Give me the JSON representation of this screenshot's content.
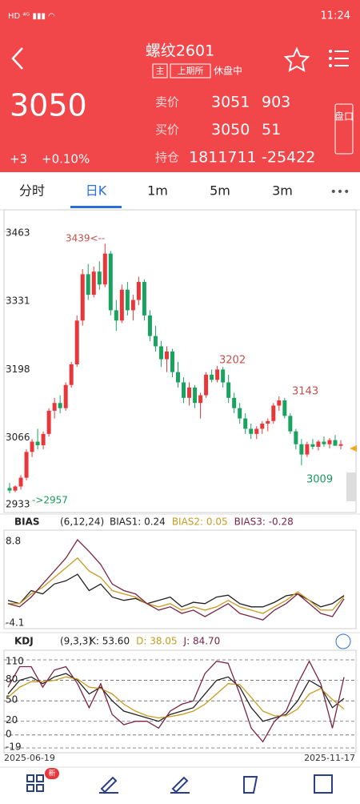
{
  "status_bar": {
    "time": "11:24"
  },
  "header": {
    "title": "螺纹2601",
    "tags": [
      "主",
      "上期所"
    ],
    "status": "休盘中"
  },
  "quote": {
    "price": "3050",
    "change": "+3",
    "change_pct": "+0.10%",
    "rows": [
      [
        "卖价",
        "3051",
        "903"
      ],
      [
        "买价",
        "3050",
        "51"
      ],
      [
        "持仓",
        "1811711",
        "-25422"
      ]
    ],
    "side_button": "盘口"
  },
  "tabs": [
    "分时",
    "日K",
    "1m",
    "5m",
    "3m"
  ],
  "active_tab": 1,
  "chart_data": [
    {
      "type": "candlestick",
      "up_color": "#e8373a",
      "down_color": "#1aa260",
      "ylim": [
        2933,
        3463
      ],
      "yticks": [
        3463,
        3331,
        3198,
        3066,
        2933
      ],
      "annotations": [
        "3439<--",
        "3202",
        "3143",
        "3009",
        "->2957"
      ],
      "x_labels": [
        "2025-06-19",
        "2025-11-17"
      ],
      "ohlc": [
        [
          2965,
          2975,
          2955,
          2960
        ],
        [
          2960,
          2970,
          2957,
          2968
        ],
        [
          2968,
          2990,
          2962,
          2985
        ],
        [
          2985,
          3040,
          2980,
          3035
        ],
        [
          3035,
          3060,
          3025,
          3055
        ],
        [
          3055,
          3080,
          3040,
          3048
        ],
        [
          3048,
          3075,
          3040,
          3070
        ],
        [
          3070,
          3120,
          3065,
          3115
        ],
        [
          3115,
          3140,
          3100,
          3130
        ],
        [
          3130,
          3145,
          3110,
          3120
        ],
        [
          3120,
          3170,
          3115,
          3165
        ],
        [
          3165,
          3210,
          3160,
          3205
        ],
        [
          3205,
          3300,
          3200,
          3290
        ],
        [
          3290,
          3390,
          3280,
          3380
        ],
        [
          3380,
          3400,
          3330,
          3340
        ],
        [
          3340,
          3395,
          3335,
          3385
        ],
        [
          3385,
          3405,
          3350,
          3360
        ],
        [
          3360,
          3439,
          3355,
          3420
        ],
        [
          3420,
          3425,
          3300,
          3310
        ],
        [
          3310,
          3330,
          3270,
          3290
        ],
        [
          3290,
          3360,
          3285,
          3350
        ],
        [
          3350,
          3365,
          3300,
          3310
        ],
        [
          3310,
          3340,
          3290,
          3330
        ],
        [
          3330,
          3375,
          3320,
          3365
        ],
        [
          3365,
          3370,
          3290,
          3300
        ],
        [
          3300,
          3310,
          3250,
          3260
        ],
        [
          3260,
          3280,
          3230,
          3240
        ],
        [
          3240,
          3250,
          3200,
          3215
        ],
        [
          3215,
          3240,
          3190,
          3230
        ],
        [
          3230,
          3235,
          3180,
          3190
        ],
        [
          3190,
          3210,
          3160,
          3170
        ],
        [
          3170,
          3180,
          3130,
          3140
        ],
        [
          3140,
          3170,
          3125,
          3160
        ],
        [
          3160,
          3165,
          3120,
          3130
        ],
        [
          3130,
          3150,
          3100,
          3145
        ],
        [
          3145,
          3190,
          3140,
          3185
        ],
        [
          3185,
          3195,
          3170,
          3175
        ],
        [
          3175,
          3202,
          3170,
          3195
        ],
        [
          3195,
          3200,
          3160,
          3170
        ],
        [
          3170,
          3185,
          3130,
          3140
        ],
        [
          3140,
          3150,
          3110,
          3120
        ],
        [
          3120,
          3130,
          3090,
          3100
        ],
        [
          3100,
          3110,
          3070,
          3080
        ],
        [
          3080,
          3090,
          3060,
          3070
        ],
        [
          3070,
          3085,
          3060,
          3080
        ],
        [
          3080,
          3095,
          3070,
          3090
        ],
        [
          3090,
          3100,
          3075,
          3095
        ],
        [
          3095,
          3130,
          3090,
          3125
        ],
        [
          3125,
          3143,
          3115,
          3135
        ],
        [
          3135,
          3140,
          3100,
          3105
        ],
        [
          3105,
          3110,
          3070,
          3075
        ],
        [
          3075,
          3080,
          3040,
          3050
        ],
        [
          3050,
          3060,
          3009,
          3030
        ],
        [
          3030,
          3055,
          3025,
          3050
        ],
        [
          3050,
          3060,
          3040,
          3045
        ],
        [
          3045,
          3058,
          3038,
          3055
        ],
        [
          3055,
          3065,
          3045,
          3050
        ],
        [
          3050,
          3062,
          3042,
          3058
        ],
        [
          3058,
          3068,
          3048,
          3047
        ],
        [
          3047,
          3058,
          3040,
          3050
        ]
      ]
    },
    {
      "type": "line",
      "title": "BIAS",
      "params": "(6,12,24)",
      "ylim": [
        -4.1,
        8.8
      ],
      "yticks": [
        8.8,
        -4.1
      ],
      "series": [
        {
          "name": "BIAS1: 0.24",
          "color": "#222222",
          "values": [
            -0.5,
            -1,
            1,
            0.5,
            2,
            2.5,
            3.5,
            1,
            2,
            0,
            -0.5,
            -0.2,
            -1,
            -0.5,
            0,
            -1.5,
            -0.8,
            -1,
            0,
            0.3,
            -1,
            -1.5,
            -1.5,
            -0.8,
            0.2,
            0.5,
            -0.5,
            -1.5,
            -1,
            0.24
          ]
        },
        {
          "name": "BIAS2: 0.05",
          "color": "#c89a1e",
          "values": [
            -1,
            -1,
            0.5,
            1.5,
            3,
            4.5,
            6,
            4,
            3,
            1,
            0.5,
            0,
            -1,
            -1.5,
            -1,
            -2,
            -1.5,
            -2,
            -1.5,
            -0.5,
            -1.5,
            -2,
            -2.5,
            -1.5,
            -0.5,
            0.8,
            -0.5,
            -2,
            -2,
            0.05
          ]
        },
        {
          "name": "BIAS3: -0.28",
          "color": "#7a2447",
          "values": [
            -1,
            -1.5,
            0,
            2,
            4,
            6,
            8.8,
            7,
            5,
            2,
            1,
            0.5,
            -1,
            -2,
            -1.5,
            -2.5,
            -2,
            -3,
            -2,
            -1,
            -2.5,
            -3,
            -3.5,
            -2,
            -1,
            0.5,
            -1,
            -2.5,
            -3,
            -0.28
          ]
        }
      ]
    },
    {
      "type": "line",
      "title": "KDJ",
      "params": "(9,3,3)",
      "ylim": [
        -19,
        110
      ],
      "yticks": [
        110,
        80,
        50,
        20,
        0,
        -19
      ],
      "grid": true,
      "series": [
        {
          "name": "K: 53.60",
          "color": "#222222",
          "values": [
            60,
            80,
            85,
            75,
            85,
            90,
            80,
            60,
            70,
            50,
            35,
            30,
            25,
            20,
            30,
            35,
            40,
            60,
            80,
            85,
            70,
            40,
            20,
            25,
            30,
            50,
            80,
            70,
            40,
            53.6
          ]
        },
        {
          "name": "D: 38.05",
          "color": "#c89a1e",
          "values": [
            55,
            70,
            78,
            78,
            80,
            85,
            82,
            70,
            68,
            60,
            45,
            35,
            28,
            25,
            27,
            30,
            35,
            45,
            60,
            75,
            74,
            55,
            35,
            28,
            28,
            38,
            60,
            68,
            52,
            38.05
          ]
        },
        {
          "name": "J: 84.70",
          "color": "#7a2447",
          "values": [
            70,
            100,
            100,
            70,
            95,
            100,
            75,
            40,
            75,
            30,
            15,
            20,
            20,
            10,
            35,
            45,
            50,
            90,
            108,
            105,
            60,
            10,
            -10,
            20,
            35,
            75,
            108,
            75,
            10,
            84.7
          ]
        }
      ]
    }
  ],
  "toolbar": {
    "badge": "新"
  }
}
